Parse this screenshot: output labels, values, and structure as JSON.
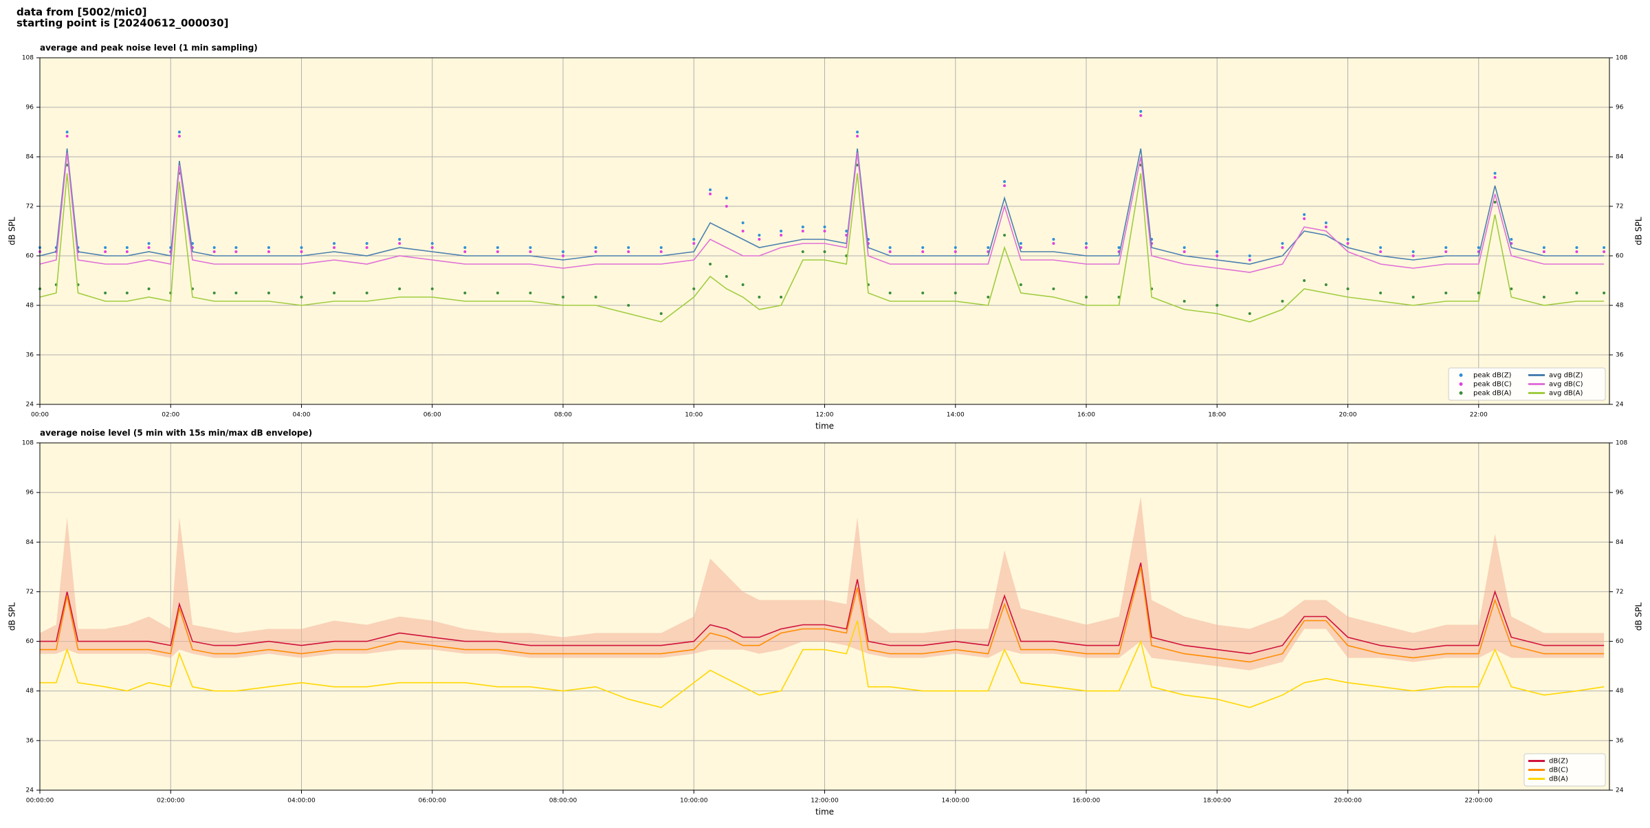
{
  "header": {
    "line1": "data from [5002/mic0]",
    "line2": "starting point is [20240612_000030]"
  },
  "chart_data": [
    {
      "type": "line",
      "title": "average and peak noise level (1 min sampling)",
      "xlabel": "time",
      "ylabel": "dB SPL",
      "xlim": [
        "00:00",
        "24:00"
      ],
      "xticks": [
        "00:00",
        "02:00",
        "04:00",
        "06:00",
        "08:00",
        "10:00",
        "12:00",
        "14:00",
        "16:00",
        "18:00",
        "20:00",
        "22:00"
      ],
      "ylim": [
        24,
        108
      ],
      "yticks": [
        24,
        36,
        48,
        60,
        72,
        84,
        96,
        108
      ],
      "grid": true,
      "legend": "lower right",
      "legend_ncol": 2,
      "background": "#fff8dc",
      "x": [
        "00:00",
        "00:15",
        "00:25",
        "00:35",
        "01:00",
        "01:20",
        "01:40",
        "02:00",
        "02:08",
        "02:20",
        "02:40",
        "03:00",
        "03:30",
        "04:00",
        "04:30",
        "05:00",
        "05:30",
        "06:00",
        "06:30",
        "07:00",
        "07:30",
        "08:00",
        "08:30",
        "09:00",
        "09:30",
        "10:00",
        "10:15",
        "10:30",
        "10:45",
        "11:00",
        "11:20",
        "11:40",
        "12:00",
        "12:20",
        "12:30",
        "12:40",
        "13:00",
        "13:30",
        "14:00",
        "14:30",
        "14:45",
        "15:00",
        "15:30",
        "16:00",
        "16:30",
        "16:50",
        "17:00",
        "17:30",
        "18:00",
        "18:30",
        "19:00",
        "19:20",
        "19:40",
        "20:00",
        "20:30",
        "21:00",
        "21:30",
        "22:00",
        "22:15",
        "22:30",
        "23:00",
        "23:30",
        "23:55"
      ],
      "series": [
        {
          "name": "peak dB(Z)",
          "kind": "scatter",
          "color": "#2f8fd8",
          "values": [
            62,
            62,
            90,
            62,
            62,
            62,
            63,
            62,
            90,
            63,
            62,
            62,
            62,
            62,
            63,
            63,
            64,
            63,
            62,
            62,
            62,
            61,
            62,
            62,
            62,
            64,
            76,
            74,
            68,
            65,
            66,
            67,
            67,
            66,
            90,
            64,
            62,
            62,
            62,
            62,
            78,
            63,
            64,
            63,
            62,
            95,
            64,
            62,
            61,
            60,
            63,
            70,
            68,
            64,
            62,
            61,
            62,
            62,
            80,
            64,
            62,
            62,
            62
          ]
        },
        {
          "name": "peak dB(C)",
          "kind": "scatter",
          "color": "#e040e0",
          "values": [
            61,
            61,
            89,
            61,
            61,
            61,
            62,
            61,
            89,
            62,
            61,
            61,
            61,
            61,
            62,
            62,
            63,
            62,
            61,
            61,
            61,
            60,
            61,
            61,
            61,
            63,
            75,
            72,
            66,
            64,
            65,
            66,
            66,
            65,
            89,
            63,
            61,
            61,
            61,
            61,
            77,
            62,
            63,
            62,
            61,
            94,
            63,
            61,
            60,
            59,
            62,
            69,
            67,
            63,
            61,
            60,
            61,
            61,
            79,
            63,
            61,
            61,
            61
          ]
        },
        {
          "name": "peak dB(A)",
          "kind": "scatter",
          "color": "#3c8c3c",
          "values": [
            52,
            53,
            82,
            53,
            51,
            51,
            52,
            51,
            80,
            52,
            51,
            51,
            51,
            50,
            51,
            51,
            52,
            52,
            51,
            51,
            51,
            50,
            50,
            48,
            46,
            52,
            58,
            55,
            53,
            50,
            50,
            61,
            61,
            60,
            82,
            53,
            51,
            51,
            51,
            50,
            65,
            53,
            52,
            50,
            50,
            82,
            52,
            49,
            48,
            46,
            49,
            54,
            53,
            52,
            51,
            50,
            51,
            51,
            73,
            52,
            50,
            51,
            51
          ]
        },
        {
          "name": "avg dB(Z)",
          "kind": "line",
          "color": "#4a7fb0",
          "values": [
            60,
            61,
            86,
            61,
            60,
            60,
            61,
            60,
            83,
            61,
            60,
            60,
            60,
            60,
            61,
            60,
            62,
            61,
            60,
            60,
            60,
            59,
            60,
            60,
            60,
            61,
            68,
            66,
            64,
            62,
            63,
            64,
            64,
            63,
            86,
            62,
            60,
            60,
            60,
            60,
            74,
            61,
            61,
            60,
            60,
            86,
            62,
            60,
            59,
            58,
            60,
            66,
            65,
            62,
            60,
            59,
            60,
            60,
            77,
            62,
            60,
            60,
            60
          ]
        },
        {
          "name": "avg dB(C)",
          "kind": "line",
          "color": "#e070d8",
          "values": [
            58,
            59,
            85,
            59,
            58,
            58,
            59,
            58,
            82,
            59,
            58,
            58,
            58,
            58,
            59,
            58,
            60,
            59,
            58,
            58,
            58,
            57,
            58,
            58,
            58,
            59,
            64,
            62,
            60,
            60,
            62,
            63,
            63,
            62,
            85,
            60,
            58,
            58,
            58,
            58,
            72,
            59,
            59,
            58,
            58,
            84,
            60,
            58,
            57,
            56,
            58,
            67,
            66,
            61,
            58,
            57,
            58,
            58,
            75,
            60,
            58,
            58,
            58
          ]
        },
        {
          "name": "avg dB(A)",
          "kind": "line",
          "color": "#a0cc40",
          "values": [
            50,
            51,
            80,
            51,
            49,
            49,
            50,
            49,
            78,
            50,
            49,
            49,
            49,
            48,
            49,
            49,
            50,
            50,
            49,
            49,
            49,
            48,
            48,
            46,
            44,
            50,
            55,
            52,
            50,
            47,
            48,
            59,
            59,
            58,
            80,
            51,
            49,
            49,
            49,
            48,
            62,
            51,
            50,
            48,
            48,
            80,
            50,
            47,
            46,
            44,
            47,
            52,
            51,
            50,
            49,
            48,
            49,
            49,
            70,
            50,
            48,
            49,
            49
          ]
        }
      ]
    },
    {
      "type": "line",
      "title": "average noise level (5 min with 15s min/max dB envelope)",
      "xlabel": "time",
      "ylabel": "dB SPL",
      "xlim": [
        "00:00:00",
        "24:00:00"
      ],
      "xticks": [
        "00:00:00",
        "02:00:00",
        "04:00:00",
        "06:00:00",
        "08:00:00",
        "10:00:00",
        "12:00:00",
        "14:00:00",
        "16:00:00",
        "18:00:00",
        "20:00:00",
        "22:00:00"
      ],
      "ylim": [
        24,
        108
      ],
      "yticks": [
        24,
        36,
        48,
        60,
        72,
        84,
        96,
        108
      ],
      "grid": true,
      "legend": "lower right",
      "legend_ncol": 1,
      "background": "#fff8dc",
      "x": [
        "00:00",
        "00:15",
        "00:25",
        "00:35",
        "01:00",
        "01:20",
        "01:40",
        "02:00",
        "02:08",
        "02:20",
        "02:40",
        "03:00",
        "03:30",
        "04:00",
        "04:30",
        "05:00",
        "05:30",
        "06:00",
        "06:30",
        "07:00",
        "07:30",
        "08:00",
        "08:30",
        "09:00",
        "09:30",
        "10:00",
        "10:15",
        "10:30",
        "10:45",
        "11:00",
        "11:20",
        "11:40",
        "12:00",
        "12:20",
        "12:30",
        "12:40",
        "13:00",
        "13:30",
        "14:00",
        "14:30",
        "14:45",
        "15:00",
        "15:30",
        "16:00",
        "16:30",
        "16:50",
        "17:00",
        "17:30",
        "18:00",
        "18:30",
        "19:00",
        "19:20",
        "19:40",
        "20:00",
        "20:30",
        "21:00",
        "21:30",
        "22:00",
        "22:15",
        "22:30",
        "23:00",
        "23:30",
        "23:55"
      ],
      "envelope": {
        "color": "#f4b39a",
        "max": [
          62,
          64,
          90,
          63,
          63,
          64,
          66,
          63,
          90,
          64,
          63,
          62,
          63,
          63,
          65,
          64,
          66,
          65,
          63,
          62,
          62,
          61,
          62,
          62,
          62,
          66,
          80,
          76,
          72,
          70,
          70,
          70,
          70,
          69,
          90,
          66,
          62,
          62,
          63,
          63,
          82,
          68,
          66,
          64,
          66,
          95,
          70,
          66,
          64,
          63,
          66,
          70,
          70,
          66,
          64,
          62,
          64,
          64,
          86,
          66,
          62,
          62,
          62
        ],
        "min": [
          57,
          57,
          58,
          57,
          57,
          57,
          57,
          56,
          58,
          57,
          56,
          56,
          57,
          56,
          57,
          57,
          58,
          58,
          57,
          57,
          56,
          56,
          56,
          56,
          56,
          57,
          58,
          58,
          58,
          57,
          58,
          60,
          60,
          59,
          58,
          57,
          56,
          56,
          57,
          56,
          58,
          57,
          57,
          56,
          56,
          60,
          56,
          55,
          54,
          53,
          55,
          63,
          63,
          56,
          56,
          55,
          56,
          56,
          58,
          56,
          56,
          56,
          56
        ]
      },
      "series": [
        {
          "name": "dB(Z)",
          "kind": "line",
          "color": "#d0103a",
          "values": [
            60,
            60,
            72,
            60,
            60,
            60,
            60,
            59,
            69,
            60,
            59,
            59,
            60,
            59,
            60,
            60,
            62,
            61,
            60,
            60,
            59,
            59,
            59,
            59,
            59,
            60,
            64,
            63,
            61,
            61,
            63,
            64,
            64,
            63,
            75,
            60,
            59,
            59,
            60,
            59,
            71,
            60,
            60,
            59,
            59,
            79,
            61,
            59,
            58,
            57,
            59,
            66,
            66,
            61,
            59,
            58,
            59,
            59,
            72,
            61,
            59,
            59,
            59
          ]
        },
        {
          "name": "dB(C)",
          "kind": "line",
          "color": "#ff8c00",
          "values": [
            58,
            58,
            71,
            58,
            58,
            58,
            58,
            57,
            68,
            58,
            57,
            57,
            58,
            57,
            58,
            58,
            60,
            59,
            58,
            58,
            57,
            57,
            57,
            57,
            57,
            58,
            62,
            61,
            59,
            59,
            62,
            63,
            63,
            62,
            73,
            58,
            57,
            57,
            58,
            57,
            69,
            58,
            58,
            57,
            57,
            78,
            59,
            57,
            56,
            55,
            57,
            65,
            65,
            59,
            57,
            56,
            57,
            57,
            70,
            59,
            57,
            57,
            57
          ]
        },
        {
          "name": "dB(A)",
          "kind": "line",
          "color": "#ffd700",
          "values": [
            50,
            50,
            58,
            50,
            49,
            48,
            50,
            49,
            57,
            49,
            48,
            48,
            49,
            50,
            49,
            49,
            50,
            50,
            50,
            49,
            49,
            48,
            49,
            46,
            44,
            50,
            53,
            51,
            49,
            47,
            48,
            58,
            58,
            57,
            65,
            49,
            49,
            48,
            48,
            48,
            58,
            50,
            49,
            48,
            48,
            60,
            49,
            47,
            46,
            44,
            47,
            50,
            51,
            50,
            49,
            48,
            49,
            49,
            58,
            49,
            47,
            48,
            49
          ]
        }
      ]
    }
  ]
}
